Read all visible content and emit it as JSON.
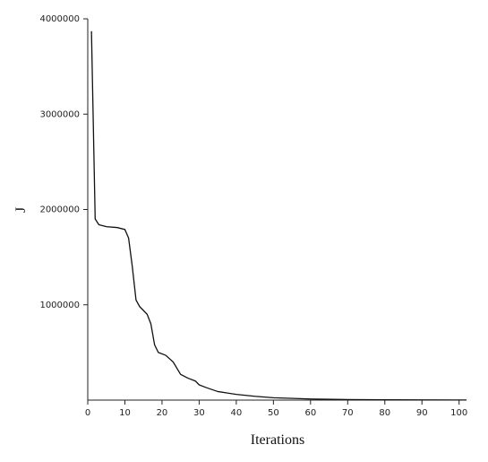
{
  "chart_data": {
    "type": "line",
    "x_label": "Iterations",
    "y_label": "J",
    "x": [
      1,
      2,
      3,
      5,
      8,
      10,
      11,
      12,
      13,
      14,
      16,
      17,
      18,
      19,
      21,
      23,
      25,
      27,
      29,
      30,
      32,
      35,
      40,
      45,
      50,
      60,
      70,
      80,
      90,
      102
    ],
    "series": [
      {
        "color": "#111111",
        "values": [
          3870000,
          1900000,
          1840000,
          1820000,
          1810000,
          1790000,
          1700000,
          1400000,
          1050000,
          980000,
          900000,
          800000,
          580000,
          500000,
          470000,
          400000,
          270000,
          230000,
          200000,
          160000,
          130000,
          90000,
          60000,
          40000,
          25000,
          12000,
          6000,
          3000,
          2000,
          1000
        ]
      }
    ],
    "xlim": [
      0,
      102
    ],
    "ylim": [
      0,
      4000000
    ],
    "xticks": [
      0,
      10,
      20,
      30,
      40,
      50,
      60,
      70,
      80,
      90,
      100
    ],
    "yticks": [
      1000000,
      2000000,
      3000000,
      4000000
    ]
  }
}
